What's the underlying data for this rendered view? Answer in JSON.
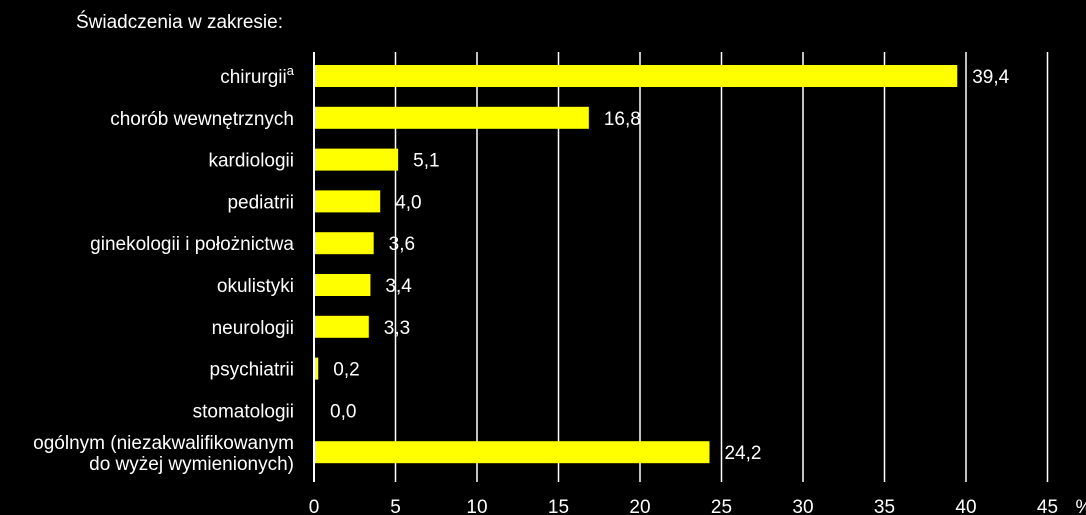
{
  "chart_data": {
    "type": "bar",
    "orientation": "horizontal",
    "title": "Świadczenia w zakresie:",
    "unit": "%",
    "categories": [
      {
        "label": "chirurgii",
        "sup": "a"
      },
      {
        "label": "chorób wewnętrznych"
      },
      {
        "label": "kardiologii"
      },
      {
        "label": "pediatrii"
      },
      {
        "label": "ginekologii i położnictwa"
      },
      {
        "label": "okulistyki"
      },
      {
        "label": "neurologii"
      },
      {
        "label": "psychiatrii"
      },
      {
        "label": "stomatologii"
      },
      {
        "label": "ogólnym (niezakwalifikowanym",
        "label2": "do wyżej wymienionych)"
      }
    ],
    "values": [
      39.4,
      16.8,
      5.1,
      4.0,
      3.6,
      3.4,
      3.3,
      0.2,
      0.0,
      24.2
    ],
    "value_labels": [
      "39,4",
      "16,8",
      "5,1",
      "4,0",
      "3,6",
      "3,4",
      "3,3",
      "0,2",
      "0,0",
      "24,2"
    ],
    "xlim": [
      0,
      45
    ],
    "xticks": [
      0,
      5,
      10,
      15,
      20,
      25,
      30,
      35,
      40,
      45
    ],
    "grid": true,
    "bar_color": "#ffff00",
    "background": "#000000",
    "text_color": "#ffffff"
  }
}
